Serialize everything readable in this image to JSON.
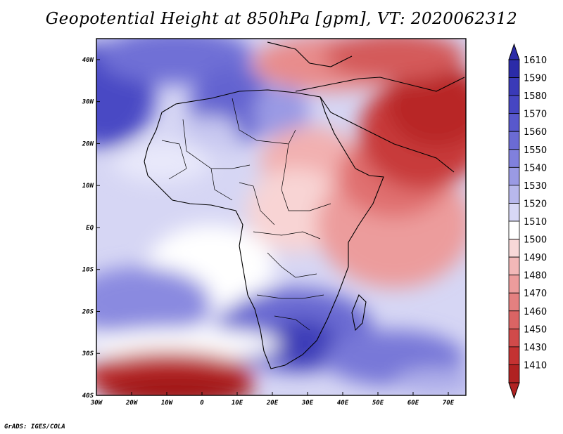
{
  "title": "Geopotential Height at 850hPa [gpm], VT: 2020062312",
  "footer": "GrADS: IGES/COLA",
  "map": {
    "lat_labels": [
      "40N",
      "30N",
      "20N",
      "10N",
      "EQ",
      "10S",
      "20S",
      "30S",
      "40S"
    ],
    "lon_labels": [
      "30W",
      "20W",
      "10W",
      "0",
      "10E",
      "20E",
      "30E",
      "40E",
      "50E",
      "60E",
      "70E"
    ],
    "extent": {
      "lon_min": -30,
      "lon_max": 75,
      "lat_min": -40,
      "lat_max": 45
    }
  },
  "colorbar": {
    "levels": [
      "1610",
      "1590",
      "1580",
      "1570",
      "1560",
      "1550",
      "1540",
      "1530",
      "1520",
      "1510",
      "1500",
      "1490",
      "1480",
      "1470",
      "1460",
      "1450",
      "1430",
      "1410"
    ],
    "colors": [
      "#2b2ba8",
      "#3a3ab8",
      "#4646c2",
      "#5858cc",
      "#6b6bd4",
      "#8080dc",
      "#9a9ae4",
      "#b8b8ec",
      "#d8d8f6",
      "#ffffff",
      "#f8d8d8",
      "#f2b8b8",
      "#ec9c9c",
      "#e48080",
      "#da6464",
      "#d04a4a",
      "#c43232",
      "#b02222"
    ]
  },
  "colors": {
    "high": "#3a3ab8",
    "low": "#b02222",
    "neutral": "#ffffff"
  }
}
